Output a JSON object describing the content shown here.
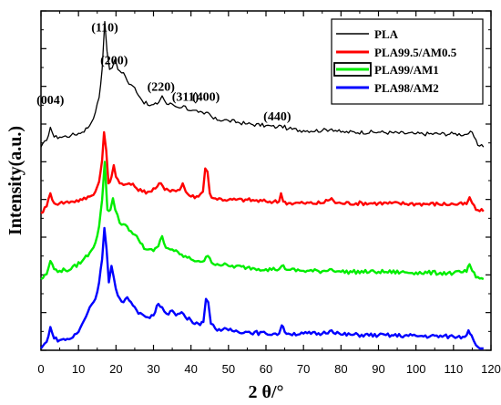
{
  "chart_data": {
    "type": "line",
    "xlabel": "2 θ/°",
    "ylabel": "Intensity(a.u.)",
    "xlim": [
      0,
      120
    ],
    "x_ticks": [
      "0",
      "10",
      "20",
      "30",
      "40",
      "50",
      "60",
      "70",
      "80",
      "90",
      "100",
      "110",
      "120"
    ],
    "grid": false,
    "legend_position": "top-right",
    "peak_labels": [
      {
        "text": "(004)",
        "x": 2.5,
        "y": 0.74
      },
      {
        "text": "(110)",
        "x": 17.0,
        "y": 0.96
      },
      {
        "text": "(200)",
        "x": 19.5,
        "y": 0.86
      },
      {
        "text": "(220)",
        "x": 32.0,
        "y": 0.78
      },
      {
        "text": "(311)",
        "x": 38.5,
        "y": 0.75
      },
      {
        "text": "(400)",
        "x": 44.0,
        "y": 0.75
      },
      {
        "text": "(440)",
        "x": 63.0,
        "y": 0.69
      }
    ],
    "series": [
      {
        "name": "PLA",
        "color": "#000000",
        "baseline": 0.61,
        "points": [
          [
            0,
            0.61
          ],
          [
            1.5,
            0.63
          ],
          [
            2.5,
            0.67
          ],
          [
            3.5,
            0.64
          ],
          [
            5,
            0.64
          ],
          [
            8,
            0.645
          ],
          [
            11,
            0.655
          ],
          [
            13,
            0.675
          ],
          [
            14.5,
            0.715
          ],
          [
            15.5,
            0.76
          ],
          [
            16.3,
            0.845
          ],
          [
            17,
            0.99
          ],
          [
            17.6,
            0.9
          ],
          [
            18.3,
            0.845
          ],
          [
            19,
            0.85
          ],
          [
            19.7,
            0.875
          ],
          [
            20.5,
            0.845
          ],
          [
            22,
            0.835
          ],
          [
            23.5,
            0.8
          ],
          [
            25,
            0.79
          ],
          [
            27,
            0.75
          ],
          [
            29,
            0.735
          ],
          [
            31,
            0.74
          ],
          [
            32.3,
            0.765
          ],
          [
            33.5,
            0.74
          ],
          [
            35,
            0.74
          ],
          [
            36.5,
            0.73
          ],
          [
            38,
            0.735
          ],
          [
            40,
            0.72
          ],
          [
            42,
            0.715
          ],
          [
            43.5,
            0.71
          ],
          [
            44.5,
            0.715
          ],
          [
            46,
            0.695
          ],
          [
            50,
            0.69
          ],
          [
            55,
            0.68
          ],
          [
            60,
            0.675
          ],
          [
            63,
            0.67
          ],
          [
            64,
            0.675
          ],
          [
            66,
            0.665
          ],
          [
            70,
            0.66
          ],
          [
            75,
            0.66
          ],
          [
            77.5,
            0.665
          ],
          [
            80,
            0.655
          ],
          [
            90,
            0.655
          ],
          [
            100,
            0.65
          ],
          [
            110,
            0.65
          ],
          [
            113.5,
            0.648
          ],
          [
            114.5,
            0.658
          ],
          [
            115.5,
            0.64
          ],
          [
            116.5,
            0.615
          ],
          [
            118,
            0.61
          ]
        ]
      },
      {
        "name": "PLA99.5/AM0.5",
        "color": "#ff0000",
        "baseline": 0.41,
        "points": [
          [
            0,
            0.41
          ],
          [
            1.5,
            0.43
          ],
          [
            2.5,
            0.47
          ],
          [
            3.5,
            0.44
          ],
          [
            5,
            0.44
          ],
          [
            8,
            0.445
          ],
          [
            11,
            0.45
          ],
          [
            13,
            0.46
          ],
          [
            14.5,
            0.475
          ],
          [
            15.5,
            0.505
          ],
          [
            16.3,
            0.57
          ],
          [
            16.8,
            0.655
          ],
          [
            17.4,
            0.6
          ],
          [
            18,
            0.5
          ],
          [
            18.8,
            0.52
          ],
          [
            19.4,
            0.555
          ],
          [
            20,
            0.52
          ],
          [
            21,
            0.5
          ],
          [
            22,
            0.495
          ],
          [
            23.5,
            0.5
          ],
          [
            25,
            0.49
          ],
          [
            27,
            0.475
          ],
          [
            29,
            0.475
          ],
          [
            31,
            0.49
          ],
          [
            32,
            0.5
          ],
          [
            33,
            0.48
          ],
          [
            35,
            0.48
          ],
          [
            37,
            0.48
          ],
          [
            37.8,
            0.5
          ],
          [
            38.6,
            0.475
          ],
          [
            40,
            0.46
          ],
          [
            42,
            0.46
          ],
          [
            43.2,
            0.475
          ],
          [
            43.8,
            0.545
          ],
          [
            44.4,
            0.535
          ],
          [
            45,
            0.47
          ],
          [
            46,
            0.455
          ],
          [
            50,
            0.45
          ],
          [
            55,
            0.45
          ],
          [
            60,
            0.445
          ],
          [
            63.5,
            0.445
          ],
          [
            64,
            0.47
          ],
          [
            64.6,
            0.445
          ],
          [
            66,
            0.44
          ],
          [
            70,
            0.44
          ],
          [
            75,
            0.44
          ],
          [
            77.5,
            0.455
          ],
          [
            78.5,
            0.44
          ],
          [
            80,
            0.44
          ],
          [
            90,
            0.44
          ],
          [
            100,
            0.438
          ],
          [
            110,
            0.437
          ],
          [
            113.5,
            0.437
          ],
          [
            114.3,
            0.458
          ],
          [
            115,
            0.44
          ],
          [
            116,
            0.42
          ],
          [
            118,
            0.415
          ]
        ]
      },
      {
        "name": "PLA99/AM1",
        "color": "#00ee00",
        "baseline": 0.21,
        "points": [
          [
            0,
            0.21
          ],
          [
            1.5,
            0.225
          ],
          [
            2.5,
            0.265
          ],
          [
            3.5,
            0.24
          ],
          [
            5,
            0.235
          ],
          [
            8,
            0.24
          ],
          [
            11,
            0.265
          ],
          [
            13,
            0.29
          ],
          [
            14.5,
            0.32
          ],
          [
            15.5,
            0.37
          ],
          [
            16.3,
            0.45
          ],
          [
            17,
            0.565
          ],
          [
            17.7,
            0.42
          ],
          [
            18.5,
            0.42
          ],
          [
            19.2,
            0.455
          ],
          [
            19.8,
            0.42
          ],
          [
            21,
            0.38
          ],
          [
            22.5,
            0.375
          ],
          [
            24,
            0.355
          ],
          [
            26,
            0.33
          ],
          [
            28,
            0.3
          ],
          [
            30,
            0.295
          ],
          [
            31.3,
            0.31
          ],
          [
            32.3,
            0.34
          ],
          [
            33.3,
            0.305
          ],
          [
            35,
            0.3
          ],
          [
            37,
            0.285
          ],
          [
            40,
            0.27
          ],
          [
            42,
            0.265
          ],
          [
            43.5,
            0.265
          ],
          [
            44.5,
            0.28
          ],
          [
            45.5,
            0.26
          ],
          [
            50,
            0.25
          ],
          [
            55,
            0.245
          ],
          [
            60,
            0.24
          ],
          [
            63.5,
            0.24
          ],
          [
            64.2,
            0.25
          ],
          [
            66,
            0.238
          ],
          [
            70,
            0.235
          ],
          [
            75,
            0.234
          ],
          [
            77.5,
            0.24
          ],
          [
            80,
            0.232
          ],
          [
            90,
            0.232
          ],
          [
            100,
            0.23
          ],
          [
            110,
            0.228
          ],
          [
            113.5,
            0.232
          ],
          [
            114.3,
            0.255
          ],
          [
            115,
            0.235
          ],
          [
            116,
            0.215
          ],
          [
            118,
            0.21
          ]
        ]
      },
      {
        "name": "PLA98/AM2",
        "color": "#0000ff",
        "baseline": 0.0,
        "points": [
          [
            0,
            0.0
          ],
          [
            1.5,
            0.02
          ],
          [
            2.5,
            0.065
          ],
          [
            3.5,
            0.03
          ],
          [
            5,
            0.025
          ],
          [
            8,
            0.03
          ],
          [
            10,
            0.05
          ],
          [
            11.5,
            0.085
          ],
          [
            13,
            0.125
          ],
          [
            14.5,
            0.15
          ],
          [
            15.5,
            0.2
          ],
          [
            16.3,
            0.27
          ],
          [
            16.9,
            0.365
          ],
          [
            17.5,
            0.3
          ],
          [
            18.1,
            0.2
          ],
          [
            18.8,
            0.25
          ],
          [
            19.4,
            0.215
          ],
          [
            20.5,
            0.16
          ],
          [
            22,
            0.14
          ],
          [
            23,
            0.155
          ],
          [
            24.5,
            0.13
          ],
          [
            26,
            0.105
          ],
          [
            28,
            0.095
          ],
          [
            30,
            0.1
          ],
          [
            31.3,
            0.135
          ],
          [
            32.3,
            0.125
          ],
          [
            33.5,
            0.105
          ],
          [
            35,
            0.115
          ],
          [
            36,
            0.1
          ],
          [
            37.5,
            0.11
          ],
          [
            38.5,
            0.095
          ],
          [
            40,
            0.085
          ],
          [
            42,
            0.075
          ],
          [
            43.3,
            0.08
          ],
          [
            44,
            0.15
          ],
          [
            44.6,
            0.14
          ],
          [
            45.3,
            0.075
          ],
          [
            46.5,
            0.06
          ],
          [
            50,
            0.055
          ],
          [
            55,
            0.05
          ],
          [
            60,
            0.045
          ],
          [
            63.5,
            0.045
          ],
          [
            64.2,
            0.07
          ],
          [
            65,
            0.05
          ],
          [
            66,
            0.045
          ],
          [
            70,
            0.045
          ],
          [
            75,
            0.045
          ],
          [
            77.5,
            0.055
          ],
          [
            80,
            0.042
          ],
          [
            90,
            0.04
          ],
          [
            100,
            0.038
          ],
          [
            110,
            0.036
          ],
          [
            113,
            0.035
          ],
          [
            114,
            0.055
          ],
          [
            114.8,
            0.04
          ],
          [
            116,
            0.01
          ],
          [
            118,
            0.0
          ]
        ]
      }
    ]
  }
}
